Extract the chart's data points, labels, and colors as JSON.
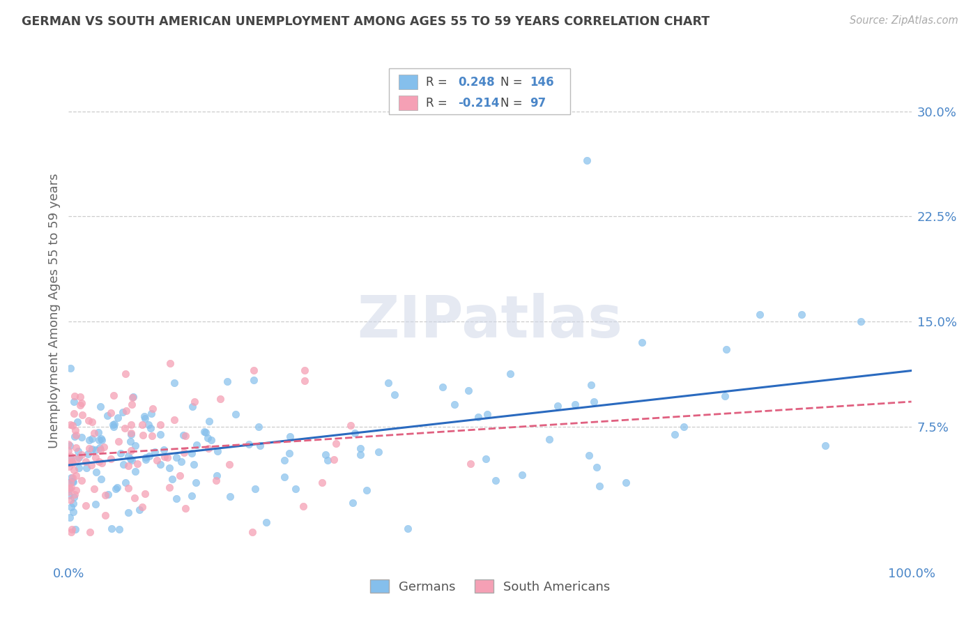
{
  "title": "GERMAN VS SOUTH AMERICAN UNEMPLOYMENT AMONG AGES 55 TO 59 YEARS CORRELATION CHART",
  "source": "Source: ZipAtlas.com",
  "ylabel": "Unemployment Among Ages 55 to 59 years",
  "ytick_labels": [
    "7.5%",
    "15.0%",
    "22.5%",
    "30.0%"
  ],
  "ytick_values": [
    0.075,
    0.15,
    0.225,
    0.3
  ],
  "xlim": [
    0.0,
    1.0
  ],
  "ylim": [
    -0.02,
    0.335
  ],
  "yplot_min": 0.0,
  "german_R": 0.248,
  "german_N": 146,
  "southam_R": -0.214,
  "southam_N": 97,
  "german_color": "#85bfec",
  "southam_color": "#f5a0b5",
  "trend_german_color": "#2a6abf",
  "trend_southam_color": "#e06080",
  "background_color": "#ffffff",
  "grid_color": "#cccccc",
  "title_color": "#444444",
  "label_color": "#4a86c8",
  "watermark_color": "#d0d8e8",
  "watermark": "ZIPatlas"
}
